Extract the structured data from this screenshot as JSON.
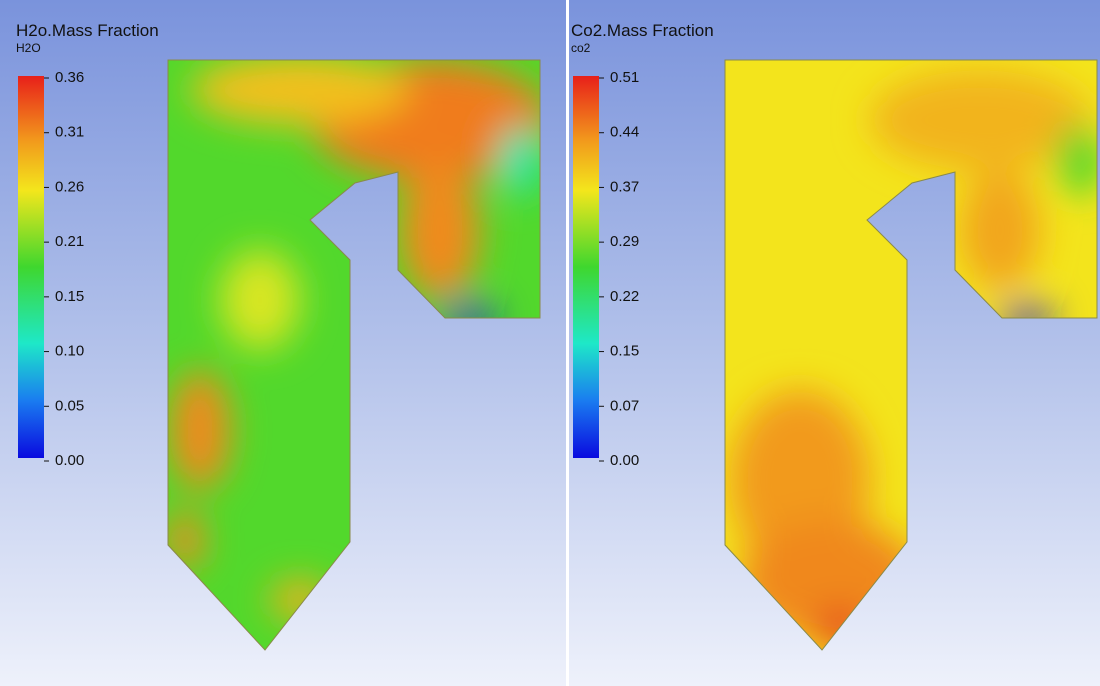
{
  "panels": [
    {
      "title": "H2o.Mass Fraction",
      "variable": "H2O",
      "ticks": [
        "0.36",
        "0.31",
        "0.26",
        "0.21",
        "0.15",
        "0.10",
        "0.05",
        "0.00"
      ]
    },
    {
      "title": "Co2.Mass Fraction",
      "variable": "co2",
      "ticks": [
        "0.51",
        "0.44",
        "0.37",
        "0.29",
        "0.22",
        "0.15",
        "0.07",
        "0.00"
      ]
    }
  ]
}
